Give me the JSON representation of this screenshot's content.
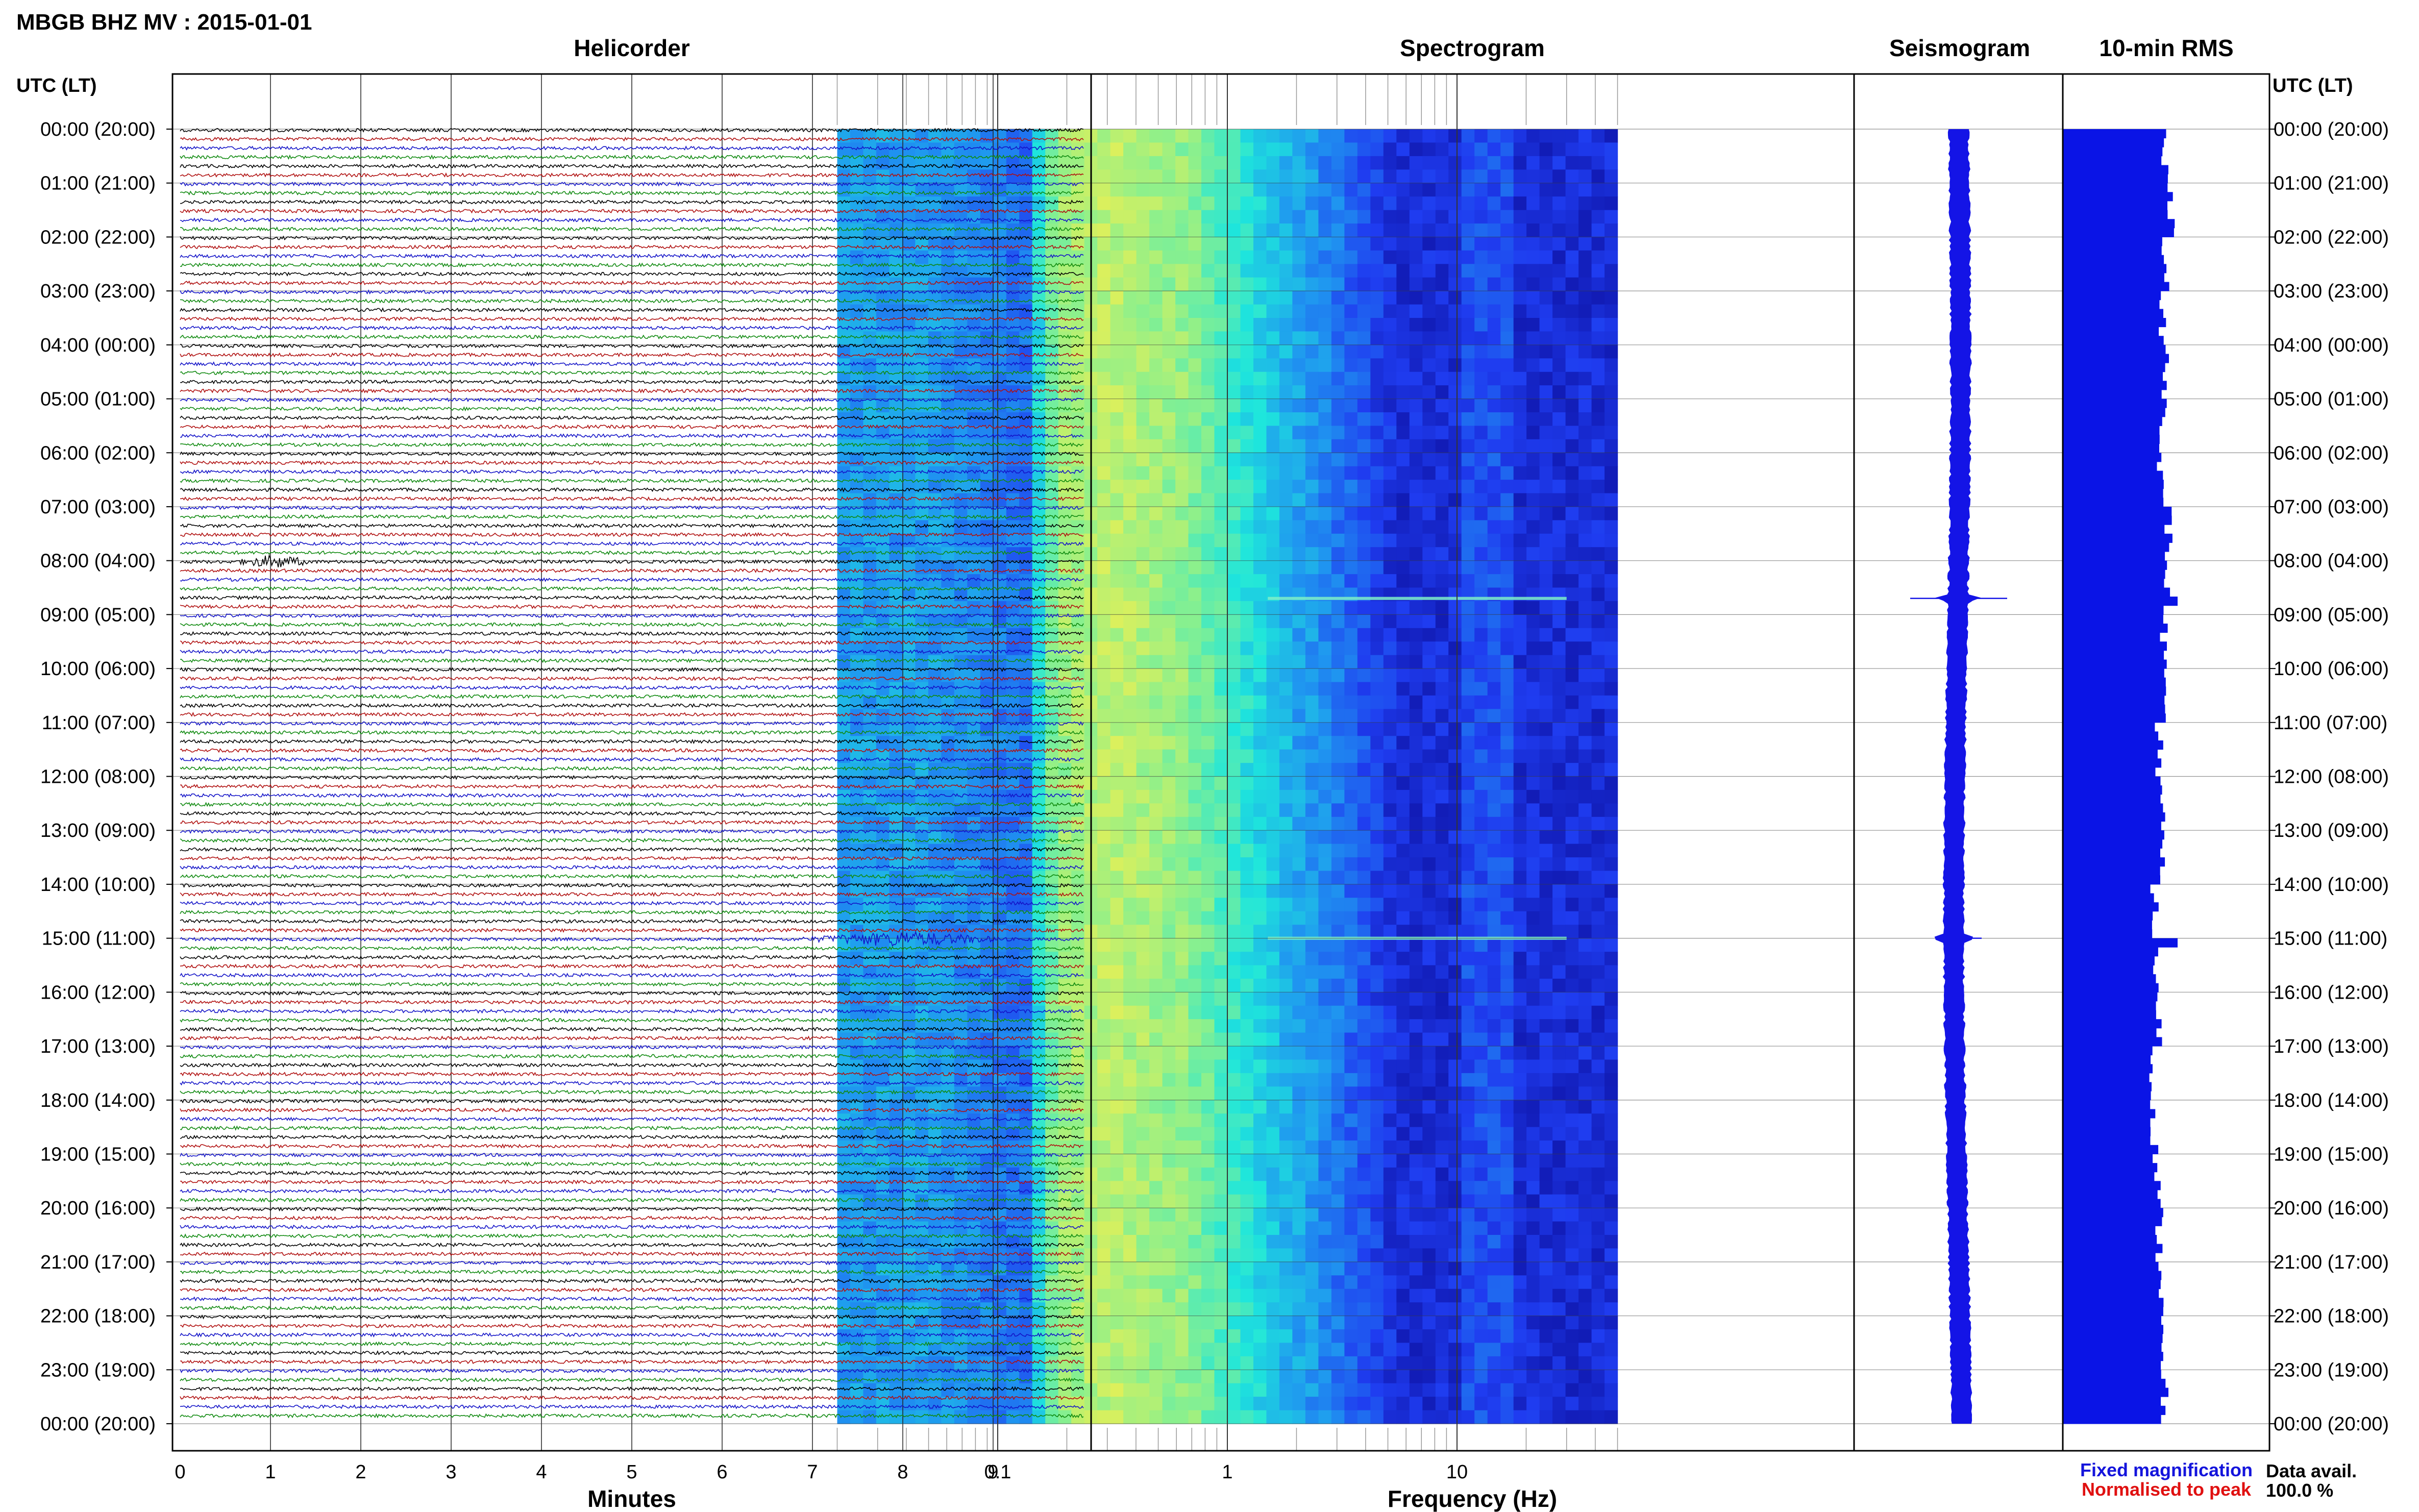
{
  "figure": {
    "title": "MBGB BHZ MV : 2015-01-01",
    "left_axis_label": "UTC (LT)",
    "right_axis_label": "UTC (LT)",
    "data_avail_label": "Data avail.",
    "data_avail_value": "100.0 %",
    "legend": [
      {
        "text": "Fixed magnification",
        "color": "#1414dc"
      },
      {
        "text": "Normalised to peak",
        "color": "#e01010"
      }
    ]
  },
  "time_labels": [
    "00:00 (20:00)",
    "01:00 (21:00)",
    "02:00 (22:00)",
    "03:00 (23:00)",
    "04:00 (00:00)",
    "05:00 (01:00)",
    "06:00 (02:00)",
    "07:00 (03:00)",
    "08:00 (04:00)",
    "09:00 (05:00)",
    "10:00 (06:00)",
    "11:00 (07:00)",
    "12:00 (08:00)",
    "13:00 (09:00)",
    "14:00 (10:00)",
    "15:00 (11:00)",
    "16:00 (12:00)",
    "17:00 (13:00)",
    "18:00 (14:00)",
    "19:00 (15:00)",
    "20:00 (16:00)",
    "21:00 (17:00)",
    "22:00 (18:00)",
    "23:00 (19:00)",
    "00:00 (20:00)"
  ],
  "chart_data": [
    {
      "type": "line",
      "title": "Helicorder",
      "xlabel": "Minutes",
      "x_ticks": [
        "0",
        "1",
        "2",
        "3",
        "4",
        "5",
        "6",
        "7",
        "8",
        "9"
      ],
      "xlim": [
        0,
        10
      ],
      "trace_colors": [
        "#000000",
        "#b01010",
        "#1414c8",
        "#108a10"
      ],
      "traces_per_hour": 6,
      "events": [
        {
          "hour": 8,
          "minute_start": 0.6,
          "minute_end": 1.5,
          "amplitude": 3.5,
          "color": "#108a10"
        },
        {
          "hour": 15,
          "minute_start": 6.8,
          "minute_end": 9.2,
          "amplitude": 4.0,
          "color": "#1414c8"
        }
      ]
    },
    {
      "type": "heatmap",
      "title": "Spectrogram",
      "xlabel": "Frequency (Hz)",
      "x_scale": "log",
      "xlim": [
        0.02,
        50
      ],
      "x_ticks": [
        "0.1",
        "1",
        "10"
      ],
      "colormap": [
        "#0a0a96",
        "#1f3cf0",
        "#1f96f0",
        "#1ee6dc",
        "#8cf08c",
        "#f0f050"
      ],
      "bright_band_hz": [
        0.2,
        0.6
      ],
      "transients_hours": [
        8.7,
        15.0
      ]
    },
    {
      "type": "line",
      "title": "Seismogram",
      "color": "#1414e6",
      "events_hours": [
        8.7,
        15.0
      ]
    },
    {
      "type": "bar",
      "title": "10-min RMS",
      "color": "#0a14e6",
      "bars": 144,
      "relative_level": [
        0.88,
        0.95,
        0.9,
        0.86,
        0.9,
        0.88,
        0.85,
        0.92,
        0.9,
        0.88,
        0.86,
        0.84,
        0.86,
        0.85,
        0.8,
        0.8,
        0.84,
        0.78,
        0.8,
        0.82,
        0.84,
        0.86,
        0.85,
        0.88
      ],
      "spikes_hours": [
        8.6,
        15.0
      ]
    }
  ]
}
